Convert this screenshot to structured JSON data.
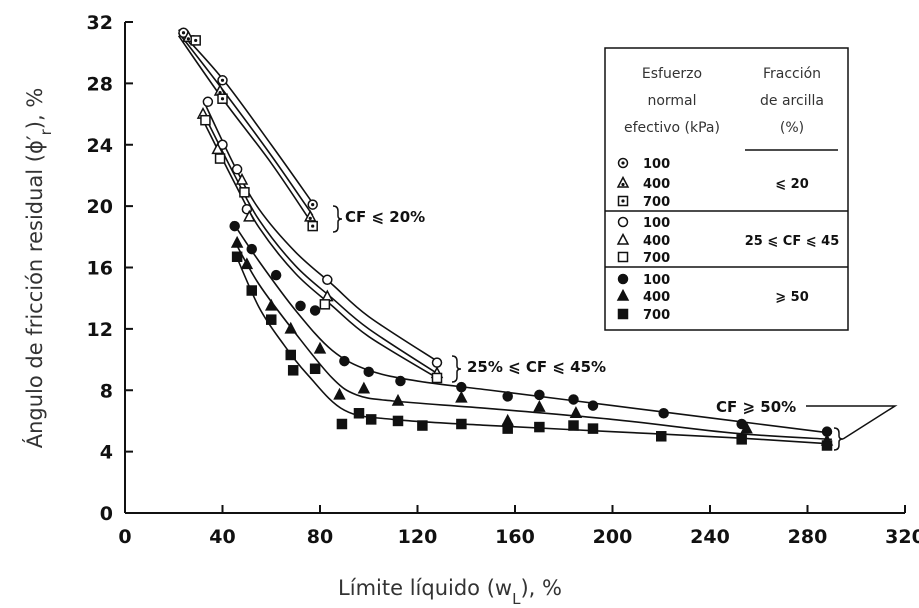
{
  "chart_data": {
    "type": "scatter",
    "ylabel": [
      "Ángulo de fricción residual (ϕ′",
      "r",
      "), %"
    ],
    "xlabel": [
      "Límite líquido (w",
      "L",
      "), %"
    ],
    "xlim": [
      0,
      320
    ],
    "ylim": [
      0,
      32
    ],
    "xticks": [
      0,
      40,
      80,
      120,
      160,
      200,
      240,
      280,
      320
    ],
    "yticks": [
      0,
      4,
      8,
      12,
      16,
      20,
      24,
      28,
      32
    ],
    "color": "#111111",
    "legend": {
      "headers": [
        [
          "Esfuerzo",
          "normal",
          "efectivo (kPa)"
        ],
        [
          "Fracción",
          "de arcilla",
          "(%)"
        ]
      ]
    },
    "groups": [
      {
        "label": "⩽ 20",
        "annotation": "CF ⩽ 20%",
        "series": [
          {
            "name": "100",
            "marker": "circle-dot",
            "x": [
              24,
              28,
              40,
              77
            ],
            "y": [
              31.3,
              30.8,
              28.2,
              20.1
            ]
          },
          {
            "name": "400",
            "marker": "triangle-dot",
            "x": [
              26,
              39,
              76
            ],
            "y": [
              31,
              27.5,
              19.3
            ]
          },
          {
            "name": "700",
            "marker": "square-dot",
            "x": [
              29,
              40,
              77
            ],
            "y": [
              30.8,
              27,
              18.7
            ]
          }
        ],
        "curves": [
          {
            "x": [
              22,
              40,
              60,
              77
            ],
            "y": [
              31.5,
              28.3,
              24,
              20.2
            ]
          },
          {
            "x": [
              22,
              40,
              60,
              77
            ],
            "y": [
              31.3,
              27.6,
              23.3,
              19.4
            ]
          },
          {
            "x": [
              22,
              40,
              60,
              77
            ],
            "y": [
              31.1,
              27,
              22.8,
              18.8
            ]
          }
        ]
      },
      {
        "label": "25 ⩽ CF ⩽ 45",
        "annotation": "25% ⩽ CF ⩽ 45%",
        "series": [
          {
            "name": "100",
            "marker": "circle-open",
            "x": [
              34,
              40,
              46,
              50,
              83,
              128
            ],
            "y": [
              26.8,
              24,
              22.4,
              19.8,
              15.2,
              9.8
            ]
          },
          {
            "name": "400",
            "marker": "triangle-open",
            "x": [
              32,
              38,
              48,
              51,
              83,
              128
            ],
            "y": [
              26,
              23.7,
              21.7,
              19.3,
              14.1,
              9.1
            ]
          },
          {
            "name": "700",
            "marker": "square-open",
            "x": [
              33,
              39,
              49,
              82,
              128
            ],
            "y": [
              25.6,
              23.1,
              20.9,
              13.6,
              8.8
            ]
          }
        ],
        "curves": [
          {
            "x": [
              33,
              45,
              55,
              70,
              85,
              100,
              128
            ],
            "y": [
              26.6,
              22.6,
              19.8,
              17,
              14.9,
              12.8,
              9.9
            ]
          },
          {
            "x": [
              32,
              45,
              55,
              70,
              85,
              100,
              128
            ],
            "y": [
              26.1,
              22,
              19.1,
              16.1,
              14,
              12,
              9.1
            ]
          },
          {
            "x": [
              32,
              45,
              55,
              70,
              85,
              100,
              128
            ],
            "y": [
              25.6,
              21.5,
              18.6,
              15.6,
              13.5,
              11.5,
              8.8
            ]
          }
        ]
      },
      {
        "label": "⩾ 50",
        "annotation": "CF ⩾ 50%",
        "series": [
          {
            "name": "100",
            "marker": "circle",
            "x": [
              45,
              52,
              62,
              72,
              78,
              90,
              100,
              113,
              138,
              157,
              170,
              184,
              192,
              221,
              253,
              288
            ],
            "y": [
              18.7,
              17.2,
              15.5,
              13.5,
              13.2,
              9.9,
              9.2,
              8.6,
              8.2,
              7.6,
              7.7,
              7.4,
              7,
              6.5,
              5.8,
              5.3
            ]
          },
          {
            "name": "400",
            "marker": "triangle",
            "x": [
              46,
              50,
              60,
              68,
              80,
              88,
              98,
              112,
              138,
              157,
              170,
              185,
              255,
              288
            ],
            "y": [
              17.6,
              16.2,
              13.5,
              12,
              10.7,
              7.7,
              8.1,
              7.3,
              7.5,
              6,
              6.9,
              6.5,
              5.5,
              4.7
            ]
          },
          {
            "name": "700",
            "marker": "square",
            "x": [
              46,
              52,
              60,
              68,
              69,
              78,
              89,
              96,
              101,
              112,
              122,
              138,
              157,
              170,
              184,
              192,
              220,
              253,
              288
            ],
            "y": [
              16.7,
              14.5,
              12.6,
              10.3,
              9.3,
              9.4,
              5.8,
              6.5,
              6.1,
              6,
              5.7,
              5.8,
              5.5,
              5.6,
              5.7,
              5.5,
              5,
              4.8,
              4.4
            ]
          }
        ],
        "curves": [
          {
            "x": [
              44,
              55,
              70,
              85,
              100,
              120,
              150,
              200,
              250,
              290
            ],
            "y": [
              19,
              16.4,
              13.2,
              10.6,
              9.3,
              8.6,
              8,
              7,
              6,
              5.2
            ]
          },
          {
            "x": [
              45,
              55,
              70,
              85,
              95,
              110,
              150,
              200,
              250,
              290
            ],
            "y": [
              17.7,
              14.9,
              11.7,
              8.8,
              7.7,
              7.3,
              6.8,
              6.1,
              5.2,
              4.8
            ]
          },
          {
            "x": [
              45,
              55,
              65,
              75,
              90,
              110,
              150,
              200,
              250,
              290
            ],
            "y": [
              17,
              13.4,
              11,
              9,
              6.7,
              6.1,
              5.7,
              5.3,
              4.9,
              4.5
            ]
          }
        ]
      }
    ]
  }
}
